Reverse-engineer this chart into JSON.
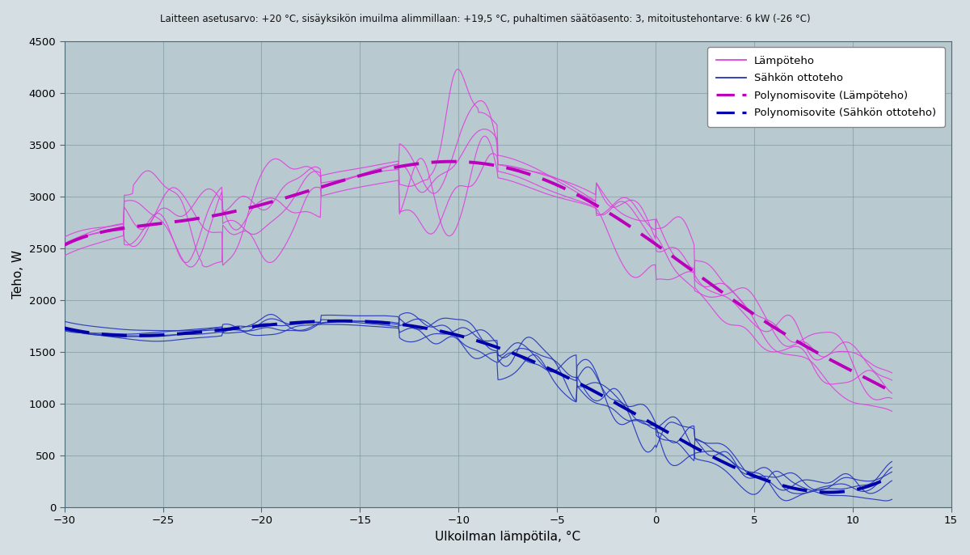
{
  "title": "Laitteen asetusarvo: +20 °C, sisäyksikön imuilma alimmillaan: +19,5 °C, puhaltimen säätöasento: 3, mitoitustehontarve: 6 kW (-26 °C)",
  "xlabel": "Ulkoilman lämpötila, °C",
  "ylabel": "Teho, W",
  "xlim": [
    -30,
    15
  ],
  "ylim": [
    0,
    4500
  ],
  "xticks": [
    -30,
    -25,
    -20,
    -15,
    -10,
    -5,
    0,
    5,
    10,
    15
  ],
  "yticks": [
    0,
    500,
    1000,
    1500,
    2000,
    2500,
    3000,
    3500,
    4000,
    4500
  ],
  "fig_bg": "#D5DFE3",
  "ax_bg": "#B8CAD0",
  "grid_color": "#7A9BA5",
  "lampo_color": "#DD44DD",
  "sahko_color": "#2233BB",
  "poly_lampo_color": "#BB00BB",
  "poly_sahko_color": "#0000AA",
  "legend_labels": [
    "Lämpöteho",
    "Sähkön ottoteho",
    "Polynomisovite (Lämpöteho)",
    "Polynomisovite (Sähkön ottoteho)"
  ]
}
